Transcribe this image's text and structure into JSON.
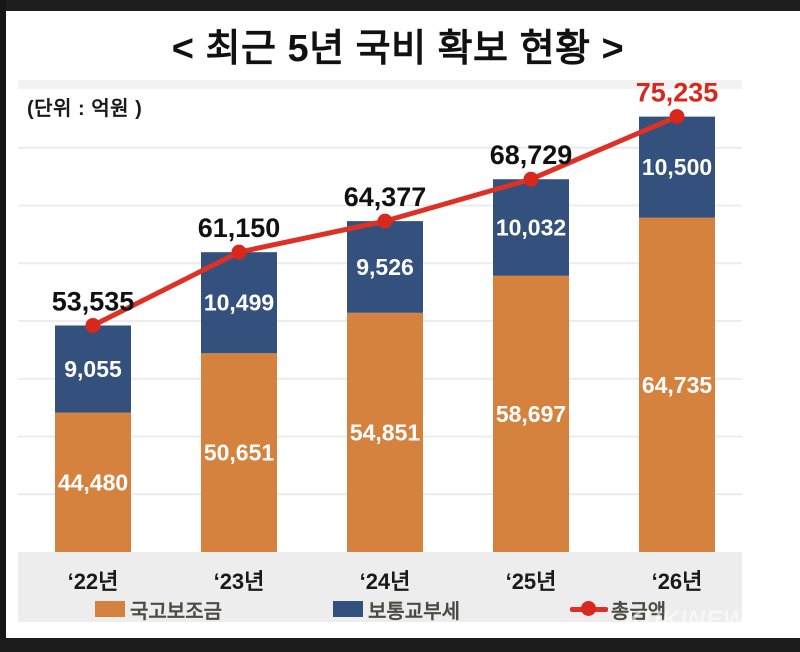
{
  "page": {
    "title": "< 최근 5년 국비 확보 현황 >",
    "unit_label": "(단위 : 억원 )",
    "watermark": "KUKINEWS"
  },
  "colors": {
    "grant_orange": "#d6823f",
    "tax_navy": "#33517c",
    "total_red": "#de3126",
    "total_label_red": "#d8281e",
    "label_black": "#111111",
    "legend_text": "#4b4b41",
    "band_gray": "#ededed",
    "gridline": "#ececec",
    "top_strip": "#f2f2f2"
  },
  "chart_data": {
    "type": "bar",
    "subtype": "stacked-bar-with-line-overlay",
    "title": "< 최근 5년 국비 확보 현황 >",
    "unit": "억원",
    "categories": [
      "‘22년",
      "‘23년",
      "‘24년",
      "‘25년",
      "‘26년"
    ],
    "series": [
      {
        "name": "국고보조금",
        "kind": "bar",
        "color": "#d6823f",
        "values": [
          44480,
          50651,
          54851,
          58697,
          64735
        ]
      },
      {
        "name": "보통교부세",
        "kind": "bar",
        "color": "#33517c",
        "values": [
          9055,
          10499,
          9526,
          10032,
          10500
        ]
      },
      {
        "name": "총금액",
        "kind": "line",
        "color": "#de3126",
        "values": [
          53535,
          61150,
          64377,
          68729,
          75235
        ]
      }
    ],
    "totals": [
      53535,
      61150,
      64377,
      68729,
      75235
    ],
    "total_label_colors": [
      "#111111",
      "#111111",
      "#111111",
      "#111111",
      "#d8281e"
    ],
    "xlabel": "",
    "ylabel": "억원",
    "axis": {
      "min": 30000,
      "max": 78000,
      "grid_step": 6000,
      "gridlines": "on",
      "y_tick_labels_shown": false
    },
    "legend_position": "bottom"
  }
}
